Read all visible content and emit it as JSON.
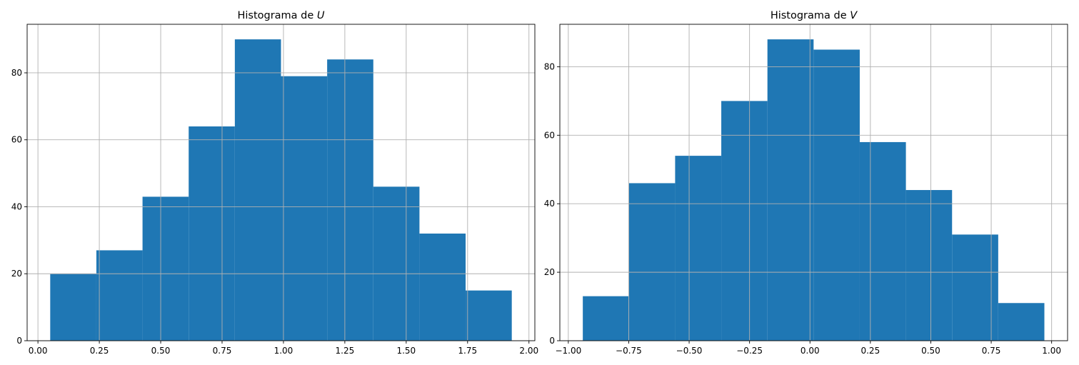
{
  "chart_data": [
    {
      "type": "bar",
      "title_prefix": "Histograma de ",
      "title_variable": "U",
      "xlabel": "",
      "ylabel": "",
      "color": "#1f77b4",
      "grid": true,
      "bin_edges": [
        0.05,
        0.238,
        0.426,
        0.614,
        0.802,
        0.99,
        1.178,
        1.366,
        1.554,
        1.742,
        1.93
      ],
      "values": [
        20,
        27,
        43,
        64,
        90,
        79,
        84,
        46,
        32,
        15
      ],
      "xlim": [
        -0.044,
        2.024
      ],
      "ylim": [
        0,
        94.5
      ],
      "xticks": [
        0.0,
        0.25,
        0.5,
        0.75,
        1.0,
        1.25,
        1.5,
        1.75,
        2.0
      ],
      "xtick_labels": [
        "0.00",
        "0.25",
        "0.50",
        "0.75",
        "1.00",
        "1.25",
        "1.50",
        "1.75",
        "2.00"
      ],
      "yticks": [
        0,
        20,
        40,
        60,
        80
      ],
      "ytick_labels": [
        "0",
        "20",
        "40",
        "60",
        "80"
      ]
    },
    {
      "type": "bar",
      "title_prefix": "Histograma de ",
      "title_variable": "V",
      "xlabel": "",
      "ylabel": "",
      "color": "#1f77b4",
      "grid": true,
      "bin_edges": [
        -0.94,
        -0.749,
        -0.558,
        -0.367,
        -0.176,
        0.015,
        0.206,
        0.397,
        0.588,
        0.779,
        0.97
      ],
      "values": [
        13,
        46,
        54,
        70,
        88,
        85,
        58,
        44,
        31,
        11
      ],
      "xlim": [
        -1.035,
        1.066
      ],
      "ylim": [
        0,
        92.4
      ],
      "xticks": [
        -1.0,
        -0.75,
        -0.5,
        -0.25,
        0.0,
        0.25,
        0.5,
        0.75,
        1.0
      ],
      "xtick_labels": [
        "−1.00",
        "−0.75",
        "−0.50",
        "−0.25",
        "0.00",
        "0.25",
        "0.50",
        "0.75",
        "1.00"
      ],
      "yticks": [
        0,
        20,
        40,
        60,
        80
      ],
      "ytick_labels": [
        "0",
        "20",
        "40",
        "60",
        "80"
      ]
    }
  ]
}
